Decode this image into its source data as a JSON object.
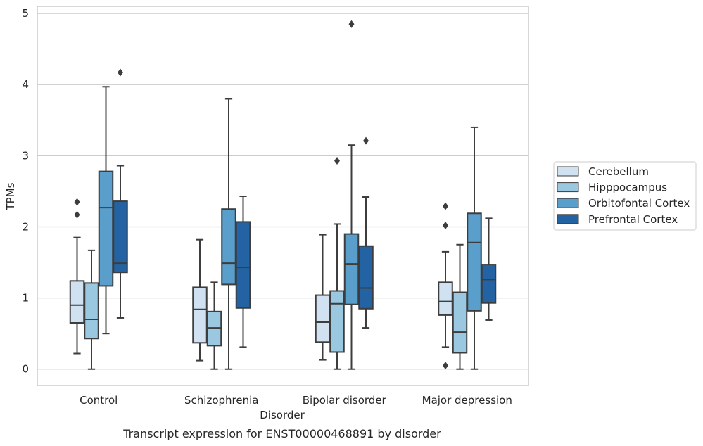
{
  "chart_data": {
    "type": "box",
    "caption": "Transcript expression for ENST00000468891 by disorder",
    "xlabel": "Disorder",
    "ylabel": "TPMs",
    "ylim": [
      -0.23,
      5.1
    ],
    "yticks": [
      "0",
      "1",
      "2",
      "3",
      "4",
      "5"
    ],
    "grid": "horizontal",
    "legend_position": "right",
    "categories": [
      "Control",
      "Schizophrenia",
      "Bipolar disorder",
      "Major depression"
    ],
    "series": [
      {
        "name": "Cerebellum",
        "color": "#d0e1f2",
        "boxes": [
          {
            "whisker_low": 0.22,
            "q1": 0.65,
            "median": 0.9,
            "q3": 1.24,
            "whisker_high": 1.85,
            "outliers": [
              2.17,
              2.35
            ]
          },
          {
            "whisker_low": 0.12,
            "q1": 0.37,
            "median": 0.84,
            "q3": 1.15,
            "whisker_high": 1.82,
            "outliers": []
          },
          {
            "whisker_low": 0.13,
            "q1": 0.38,
            "median": 0.66,
            "q3": 1.04,
            "whisker_high": 1.89,
            "outliers": []
          },
          {
            "whisker_low": 0.31,
            "q1": 0.76,
            "median": 0.95,
            "q3": 1.22,
            "whisker_high": 1.65,
            "outliers": [
              0.05,
              2.02,
              2.29
            ]
          }
        ]
      },
      {
        "name": "Hipppocampus",
        "color": "#9ac8e0",
        "boxes": [
          {
            "whisker_low": 0.0,
            "q1": 0.43,
            "median": 0.7,
            "q3": 1.21,
            "whisker_high": 1.67,
            "outliers": []
          },
          {
            "whisker_low": 0.0,
            "q1": 0.33,
            "median": 0.58,
            "q3": 0.81,
            "whisker_high": 1.22,
            "outliers": []
          },
          {
            "whisker_low": 0.0,
            "q1": 0.24,
            "median": 0.92,
            "q3": 1.1,
            "whisker_high": 2.04,
            "outliers": [
              2.93
            ]
          },
          {
            "whisker_low": 0.0,
            "q1": 0.23,
            "median": 0.52,
            "q3": 1.08,
            "whisker_high": 1.75,
            "outliers": []
          }
        ]
      },
      {
        "name": "Orbitofontal Cortex",
        "color": "#5a9ecb",
        "boxes": [
          {
            "whisker_low": 0.5,
            "q1": 1.17,
            "median": 2.27,
            "q3": 2.78,
            "whisker_high": 3.97,
            "outliers": []
          },
          {
            "whisker_low": 0.0,
            "q1": 1.19,
            "median": 1.49,
            "q3": 2.25,
            "whisker_high": 3.8,
            "outliers": []
          },
          {
            "whisker_low": 0.0,
            "q1": 0.91,
            "median": 1.48,
            "q3": 1.9,
            "whisker_high": 3.15,
            "outliers": [
              4.85
            ]
          },
          {
            "whisker_low": 0.0,
            "q1": 0.82,
            "median": 1.78,
            "q3": 2.19,
            "whisker_high": 3.4,
            "outliers": []
          }
        ]
      },
      {
        "name": "Prefrontal Cortex",
        "color": "#2363a3",
        "boxes": [
          {
            "whisker_low": 0.72,
            "q1": 1.36,
            "median": 1.49,
            "q3": 2.36,
            "whisker_high": 2.86,
            "outliers": [
              4.17
            ]
          },
          {
            "whisker_low": 0.31,
            "q1": 0.86,
            "median": 1.43,
            "q3": 2.07,
            "whisker_high": 2.43,
            "outliers": []
          },
          {
            "whisker_low": 0.58,
            "q1": 0.85,
            "median": 1.14,
            "q3": 1.73,
            "whisker_high": 2.42,
            "outliers": [
              3.21
            ]
          },
          {
            "whisker_low": 0.69,
            "q1": 0.93,
            "median": 1.26,
            "q3": 1.47,
            "whisker_high": 2.12,
            "outliers": []
          }
        ]
      }
    ]
  }
}
